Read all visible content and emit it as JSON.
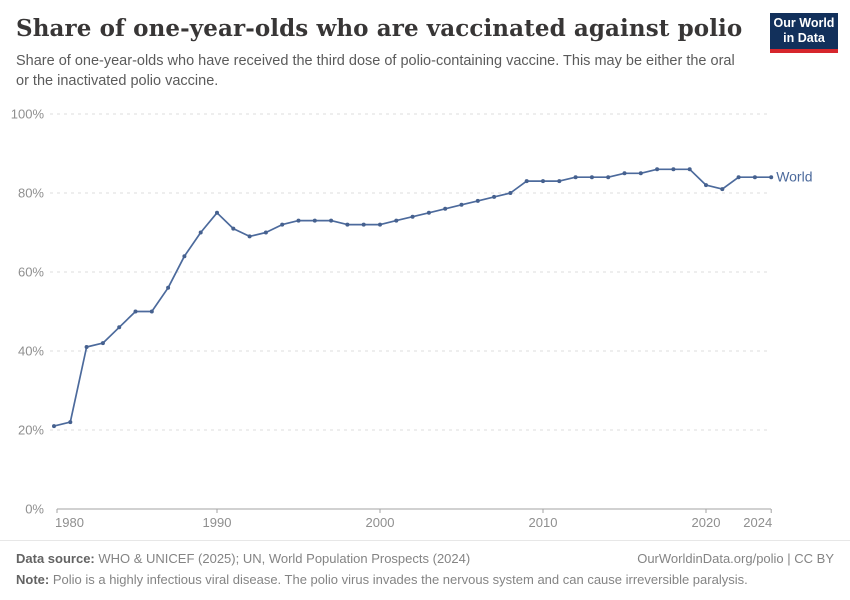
{
  "header": {
    "title": "Share of one-year-olds who are vaccinated against polio",
    "subtitle": "Share of one-year-olds who have received the third dose of polio-containing vaccine. This may be either the oral or the inactivated polio vaccine.",
    "logo_line1": "Our World",
    "logo_line2": "in Data"
  },
  "chart_data": {
    "type": "line",
    "title": "Share of one-year-olds who are vaccinated against polio",
    "xlabel": "",
    "ylabel": "",
    "xlim": [
      1980,
      2024
    ],
    "ylim": [
      0,
      100
    ],
    "grid": "horizontal-dashed",
    "legend_position": "end-of-line-label",
    "x_ticks": [
      1980,
      1990,
      2000,
      2010,
      2020,
      2024
    ],
    "y_ticks": [
      0,
      20,
      40,
      60,
      80,
      100
    ],
    "y_tick_suffix": "%",
    "series": [
      {
        "name": "World",
        "color": "#4c6a9c",
        "start_year": 1980,
        "x": [
          1980,
          1981,
          1982,
          1983,
          1984,
          1985,
          1986,
          1987,
          1988,
          1989,
          1990,
          1991,
          1992,
          1993,
          1994,
          1995,
          1996,
          1997,
          1998,
          1999,
          2000,
          2001,
          2002,
          2003,
          2004,
          2005,
          2006,
          2007,
          2008,
          2009,
          2010,
          2011,
          2012,
          2013,
          2014,
          2015,
          2016,
          2017,
          2018,
          2019,
          2020,
          2021,
          2022,
          2023,
          2024
        ],
        "values": [
          21,
          22,
          41,
          42,
          46,
          50,
          50,
          56,
          64,
          70,
          75,
          71,
          69,
          70,
          72,
          73,
          73,
          73,
          72,
          72,
          72,
          73,
          74,
          75,
          76,
          77,
          78,
          79,
          80,
          83,
          83,
          83,
          84,
          84,
          84,
          85,
          85,
          86,
          86,
          86,
          82,
          81,
          84,
          84,
          84
        ]
      }
    ]
  },
  "footer": {
    "datasource_label": "Data source:",
    "datasource_text": " WHO & UNICEF (2025); UN, World Population Prospects (2024)",
    "link_text": "OurWorldinData.org/polio | CC BY",
    "note_label": "Note:",
    "note_text": " Polio is a highly infectious viral disease. The polio virus invades the nervous system and can cause irreversible paralysis."
  },
  "colors": {
    "line": "#4c6a9c",
    "marker": "#46618f",
    "grid": "#dcdcdc",
    "axis": "#a3a3a3",
    "tick_label": "#8f8f8f",
    "title": "#383636",
    "subtitle": "#5b5b5b",
    "logo_bg": "#12305b",
    "logo_stripe": "#d6262c"
  }
}
